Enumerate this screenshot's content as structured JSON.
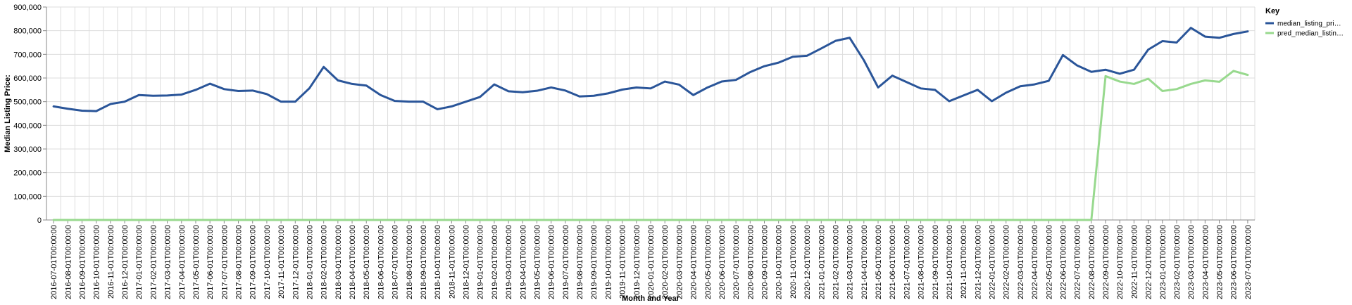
{
  "chart_data": {
    "type": "line",
    "xlabel": "Month and Year",
    "ylabel": "Median Listing Price:",
    "ylim": [
      0,
      900000
    ],
    "yticks": [
      0,
      100000,
      200000,
      300000,
      400000,
      500000,
      600000,
      700000,
      800000,
      900000
    ],
    "ytick_labels": [
      "0",
      "100,000",
      "200,000",
      "300,000",
      "400,000",
      "500,000",
      "600,000",
      "700,000",
      "800,000",
      "900,000"
    ],
    "grid": true,
    "legend": {
      "title": "Key",
      "placement": "right",
      "entries": [
        {
          "label": "median_listing_pri…",
          "color": "#2a5599"
        },
        {
          "label": "pred_median_listin…",
          "color": "#98d98e"
        }
      ]
    },
    "x": [
      "2016-07-01T00:00:00",
      "2016-08-01T00:00:00",
      "2016-09-01T00:00:00",
      "2016-10-01T00:00:00",
      "2016-11-01T00:00:00",
      "2016-12-01T00:00:00",
      "2017-01-01T00:00:00",
      "2017-02-01T00:00:00",
      "2017-03-01T00:00:00",
      "2017-04-01T00:00:00",
      "2017-05-01T00:00:00",
      "2017-06-01T00:00:00",
      "2017-07-01T00:00:00",
      "2017-08-01T00:00:00",
      "2017-09-01T00:00:00",
      "2017-10-01T00:00:00",
      "2017-11-01T00:00:00",
      "2017-12-01T00:00:00",
      "2018-01-01T00:00:00",
      "2018-02-01T00:00:00",
      "2018-03-01T00:00:00",
      "2018-04-01T00:00:00",
      "2018-05-01T00:00:00",
      "2018-06-01T00:00:00",
      "2018-07-01T00:00:00",
      "2018-08-01T00:00:00",
      "2018-09-01T00:00:00",
      "2018-10-01T00:00:00",
      "2018-11-01T00:00:00",
      "2018-12-01T00:00:00",
      "2019-01-01T00:00:00",
      "2019-02-01T00:00:00",
      "2019-03-01T00:00:00",
      "2019-04-01T00:00:00",
      "2019-05-01T00:00:00",
      "2019-06-01T00:00:00",
      "2019-07-01T00:00:00",
      "2019-08-01T00:00:00",
      "2019-09-01T00:00:00",
      "2019-10-01T00:00:00",
      "2019-11-01T00:00:00",
      "2019-12-01T00:00:00",
      "2020-01-01T00:00:00",
      "2020-02-01T00:00:00",
      "2020-03-01T00:00:00",
      "2020-04-01T00:00:00",
      "2020-05-01T00:00:00",
      "2020-06-01T00:00:00",
      "2020-07-01T00:00:00",
      "2020-08-01T00:00:00",
      "2020-09-01T00:00:00",
      "2020-10-01T00:00:00",
      "2020-11-01T00:00:00",
      "2020-12-01T00:00:00",
      "2021-01-01T00:00:00",
      "2021-02-01T00:00:00",
      "2021-03-01T00:00:00",
      "2021-04-01T00:00:00",
      "2021-05-01T00:00:00",
      "2021-06-01T00:00:00",
      "2021-07-01T00:00:00",
      "2021-08-01T00:00:00",
      "2021-09-01T00:00:00",
      "2021-10-01T00:00:00",
      "2021-11-01T00:00:00",
      "2021-12-01T00:00:00",
      "2022-01-01T00:00:00",
      "2022-02-01T00:00:00",
      "2022-03-01T00:00:00",
      "2022-04-01T00:00:00",
      "2022-05-01T00:00:00",
      "2022-06-01T00:00:00",
      "2022-07-01T00:00:00",
      "2022-08-01T00:00:00",
      "2022-09-01T00:00:00",
      "2022-10-01T00:00:00",
      "2022-11-01T00:00:00",
      "2022-12-01T00:00:00",
      "2023-01-01T00:00:00",
      "2023-02-01T00:00:00",
      "2023-03-01T00:00:00",
      "2023-04-01T00:00:00",
      "2023-05-01T00:00:00",
      "2023-06-01T00:00:00",
      "2023-07-01T00:00:00"
    ],
    "series": [
      {
        "name": "median_listing_pri…",
        "color": "#2a5599",
        "values": [
          480000,
          470000,
          462000,
          460000,
          490000,
          500000,
          528000,
          525000,
          526000,
          530000,
          550000,
          576000,
          553000,
          545000,
          547000,
          532000,
          500000,
          500000,
          557000,
          647000,
          590000,
          575000,
          568000,
          528000,
          503000,
          500000,
          500000,
          468000,
          480000,
          500000,
          520000,
          573000,
          544000,
          540000,
          546000,
          560000,
          547000,
          522000,
          525000,
          535000,
          551000,
          560000,
          556000,
          585000,
          572000,
          528000,
          560000,
          585000,
          592000,
          625000,
          650000,
          665000,
          690000,
          694000,
          725000,
          757000,
          770000,
          675000,
          560000,
          610000,
          583000,
          556000,
          550000,
          502000,
          526000,
          550000,
          502000,
          538000,
          565000,
          573000,
          588000,
          697000,
          653000,
          626000,
          635000,
          618000,
          635000,
          720000,
          756000,
          750000,
          812000,
          775000,
          770000,
          786000,
          797000
        ]
      },
      {
        "name": "pred_median_listin…",
        "color": "#98d98e",
        "values": [
          0,
          0,
          0,
          0,
          0,
          0,
          0,
          0,
          0,
          0,
          0,
          0,
          0,
          0,
          0,
          0,
          0,
          0,
          0,
          0,
          0,
          0,
          0,
          0,
          0,
          0,
          0,
          0,
          0,
          0,
          0,
          0,
          0,
          0,
          0,
          0,
          0,
          0,
          0,
          0,
          0,
          0,
          0,
          0,
          0,
          0,
          0,
          0,
          0,
          0,
          0,
          0,
          0,
          0,
          0,
          0,
          0,
          0,
          0,
          0,
          0,
          0,
          0,
          0,
          0,
          0,
          0,
          0,
          0,
          0,
          0,
          0,
          0,
          0,
          608000,
          585000,
          575000,
          597000,
          545000,
          553000,
          575000,
          590000,
          584000,
          630000,
          613000
        ]
      }
    ]
  }
}
